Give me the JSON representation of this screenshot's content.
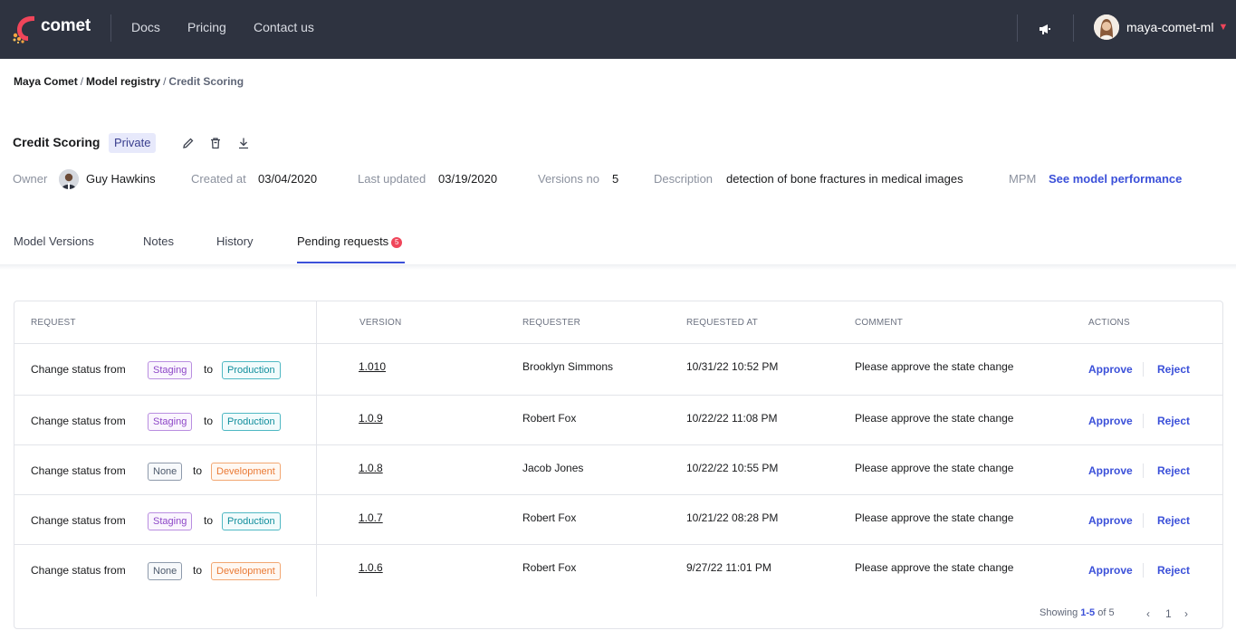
{
  "topbar": {
    "logo_text": "comet",
    "nav": [
      "Docs",
      "Pricing",
      "Contact us"
    ],
    "user_name": "maya-comet-ml",
    "icons": {
      "announcements": "megaphone-icon",
      "user_menu": "chevron-down-icon"
    },
    "colors": {
      "background": "#2e3340",
      "brand": "#f0455a"
    }
  },
  "breadcrumb": {
    "workspace": "Maya Comet",
    "section": "Model registry",
    "current": "Credit Scoring",
    "separator": "/"
  },
  "model": {
    "title": "Credit Scoring",
    "visibility": "Private",
    "icons": [
      "edit-icon",
      "delete-icon",
      "download-icon"
    ],
    "owner_label": "Owner",
    "owner_name": "Guy Hawkins",
    "created_label": "Created at",
    "created_value": "03/04/2020",
    "updated_label": "Last updated",
    "updated_value": "03/19/2020",
    "versions_label": "Versions no",
    "versions_value": "5",
    "description_label": "Description",
    "description_value": "detection of bone fractures in medical images",
    "mpm_label": "MPM",
    "mpm_link": "See model performance"
  },
  "tabs": {
    "items": [
      "Model Versions",
      "Notes",
      "History",
      "Pending requests"
    ],
    "active": "Pending requests",
    "pending_count": "5",
    "accent": "#3b50d9"
  },
  "table": {
    "headers": {
      "request": "REQUEST",
      "version": "VERSION",
      "requester": "REQUESTER",
      "requested_at": "REQUESTED AT",
      "comment": "COMMENT",
      "actions": "ACTIONS"
    },
    "rows": [
      {
        "prefix": "Change status from",
        "from": "Staging",
        "from_kind": "staging",
        "to_word": "to",
        "to": "Production",
        "to_kind": "production",
        "version": "1.010",
        "requester": "Brooklyn Simmons",
        "requested_at": "10/31/22 10:52 PM",
        "comment": "Please approve the state change",
        "approve": "Approve",
        "reject": "Reject"
      },
      {
        "prefix": "Change status from",
        "from": "Staging",
        "from_kind": "staging",
        "to_word": "to",
        "to": "Production",
        "to_kind": "production",
        "version": "1.0.9",
        "requester": "Robert Fox",
        "requested_at": "10/22/22 11:08 PM",
        "comment": "Please approve the state change",
        "approve": "Approve",
        "reject": "Reject"
      },
      {
        "prefix": "Change status from",
        "from": "None",
        "from_kind": "none",
        "to_word": "to",
        "to": "Development",
        "to_kind": "development",
        "version": "1.0.8",
        "requester": "Jacob Jones",
        "requested_at": "10/22/22 10:55 PM",
        "comment": "Please approve the state change",
        "approve": "Approve",
        "reject": "Reject"
      },
      {
        "prefix": "Change status from",
        "from": "Staging",
        "from_kind": "staging",
        "to_word": "to",
        "to": "Production",
        "to_kind": "production",
        "version": "1.0.7",
        "requester": "Robert Fox",
        "requested_at": "10/21/22 08:28 PM",
        "comment": "Please approve the state change",
        "approve": "Approve",
        "reject": "Reject"
      },
      {
        "prefix": "Change status from",
        "from": "None",
        "from_kind": "none",
        "to_word": "to",
        "to": "Development",
        "to_kind": "development",
        "version": "1.0.6",
        "requester": "Robert Fox",
        "requested_at": "9/27/22 11:01 PM",
        "comment": "Please approve the state change",
        "approve": "Approve",
        "reject": "Reject"
      }
    ],
    "footer": {
      "showing_label": "Showing",
      "range": "1-5",
      "of_label": "of",
      "total": "5",
      "page": "1"
    },
    "tag_colors": {
      "staging": "#8d46c7",
      "production": "#108e9c",
      "none": "#4d5a6c",
      "development": "#ea7a35"
    }
  }
}
